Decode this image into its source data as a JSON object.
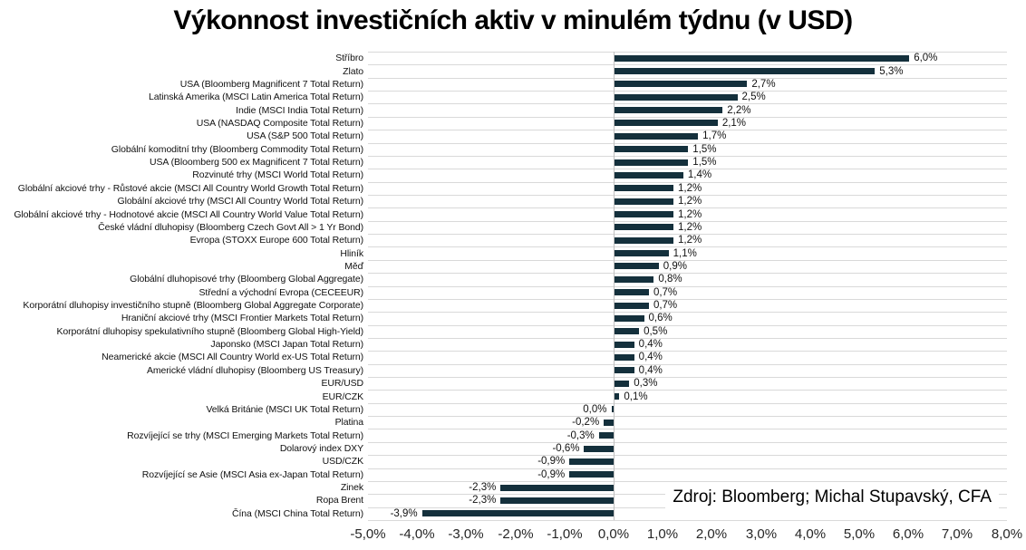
{
  "chart_data": {
    "type": "bar",
    "orientation": "horizontal",
    "title": "Výkonnost investičních aktiv v minulém týdnu (v USD)",
    "source": "Zdroj: Bloomberg; Michal Stupavský, CFA",
    "xlim": [
      -5.0,
      8.0
    ],
    "grid": true,
    "bar_color": "#14303c",
    "gridline_color": "#d9d9d9",
    "x_ticks": [
      {
        "value": -5,
        "label": "-5,0%"
      },
      {
        "value": -4,
        "label": "-4,0%"
      },
      {
        "value": -3,
        "label": "-3,0%"
      },
      {
        "value": -2,
        "label": "-2,0%"
      },
      {
        "value": -1,
        "label": "-1,0%"
      },
      {
        "value": 0,
        "label": "0,0%"
      },
      {
        "value": 1,
        "label": "1,0%"
      },
      {
        "value": 2,
        "label": "2,0%"
      },
      {
        "value": 3,
        "label": "3,0%"
      },
      {
        "value": 4,
        "label": "4,0%"
      },
      {
        "value": 5,
        "label": "5,0%"
      },
      {
        "value": 6,
        "label": "6,0%"
      },
      {
        "value": 7,
        "label": "7,0%"
      },
      {
        "value": 8,
        "label": "8,0%"
      }
    ],
    "items": [
      {
        "category": "Stříbro",
        "value": 6.0,
        "label": "6,0%"
      },
      {
        "category": "Zlato",
        "value": 5.3,
        "label": "5,3%"
      },
      {
        "category": "USA (Bloomberg Magnificent 7 Total Return)",
        "value": 2.7,
        "label": "2,7%"
      },
      {
        "category": "Latinská Amerika (MSCI Latin America Total Return)",
        "value": 2.5,
        "label": "2,5%"
      },
      {
        "category": "Indie (MSCI India Total Return)",
        "value": 2.2,
        "label": "2,2%"
      },
      {
        "category": "USA (NASDAQ Composite Total Return)",
        "value": 2.1,
        "label": "2,1%"
      },
      {
        "category": "USA (S&P 500 Total Return)",
        "value": 1.7,
        "label": "1,7%"
      },
      {
        "category": "Globální komoditní trhy (Bloomberg Commodity Total Return)",
        "value": 1.5,
        "label": "1,5%"
      },
      {
        "category": "USA (Bloomberg 500 ex Magnificent 7 Total Return)",
        "value": 1.5,
        "label": "1,5%"
      },
      {
        "category": "Rozvinuté trhy (MSCI World Total Return)",
        "value": 1.4,
        "label": "1,4%"
      },
      {
        "category": "Globální akciové trhy - Růstové akcie (MSCI All Country World Growth Total Return)",
        "value": 1.2,
        "label": "1,2%"
      },
      {
        "category": "Globální akciové trhy (MSCI All Country World Total Return)",
        "value": 1.2,
        "label": "1,2%"
      },
      {
        "category": "Globální akciové trhy - Hodnotové akcie (MSCI All Country World Value Total Return)",
        "value": 1.2,
        "label": "1,2%"
      },
      {
        "category": "České vládní dluhopisy (Bloomberg Czech Govt All > 1 Yr Bond)",
        "value": 1.2,
        "label": "1,2%"
      },
      {
        "category": "Evropa (STOXX Europe 600 Total Return)",
        "value": 1.2,
        "label": "1,2%"
      },
      {
        "category": "Hliník",
        "value": 1.1,
        "label": "1,1%"
      },
      {
        "category": "Měď",
        "value": 0.9,
        "label": "0,9%"
      },
      {
        "category": "Globální dluhopisové trhy (Bloomberg Global Aggregate)",
        "value": 0.8,
        "label": "0,8%"
      },
      {
        "category": "Střední a východní Evropa (CECEEUR)",
        "value": 0.7,
        "label": "0,7%"
      },
      {
        "category": "Korporátní dluhopisy investičního stupně (Bloomberg Global Aggregate Corporate)",
        "value": 0.7,
        "label": "0,7%"
      },
      {
        "category": "Hraniční akciové trhy (MSCI Frontier Markets Total Return)",
        "value": 0.6,
        "label": "0,6%"
      },
      {
        "category": "Korporátní dluhopisy spekulativního stupně (Bloomberg Global High-Yield)",
        "value": 0.5,
        "label": "0,5%"
      },
      {
        "category": "Japonsko (MSCI Japan Total Return)",
        "value": 0.4,
        "label": "0,4%"
      },
      {
        "category": "Neamerické akcie (MSCI All Country World ex-US Total Return)",
        "value": 0.4,
        "label": "0,4%"
      },
      {
        "category": "Americké vládní dluhopisy (Bloomberg US Treasury)",
        "value": 0.4,
        "label": "0,4%"
      },
      {
        "category": "EUR/USD",
        "value": 0.3,
        "label": "0,3%"
      },
      {
        "category": "EUR/CZK",
        "value": 0.1,
        "label": "0,1%"
      },
      {
        "category": "Velká Británie (MSCI UK Total Return)",
        "value": 0.0,
        "label": "0,0%"
      },
      {
        "category": "Platina",
        "value": -0.2,
        "label": "-0,2%"
      },
      {
        "category": "Rozvíjející se trhy (MSCI Emerging Markets Total Return)",
        "value": -0.3,
        "label": "-0,3%"
      },
      {
        "category": "Dolarový index DXY",
        "value": -0.6,
        "label": "-0,6%"
      },
      {
        "category": "USD/CZK",
        "value": -0.9,
        "label": "-0,9%"
      },
      {
        "category": "Rozvíjející se Asie (MSCI Asia ex-Japan Total Return)",
        "value": -0.9,
        "label": "-0,9%"
      },
      {
        "category": "Zinek",
        "value": -2.3,
        "label": "-2,3%"
      },
      {
        "category": "Ropa Brent",
        "value": -2.3,
        "label": "-2,3%"
      },
      {
        "category": "Čína (MSCI China Total Return)",
        "value": -3.9,
        "label": "-3,9%"
      }
    ]
  }
}
